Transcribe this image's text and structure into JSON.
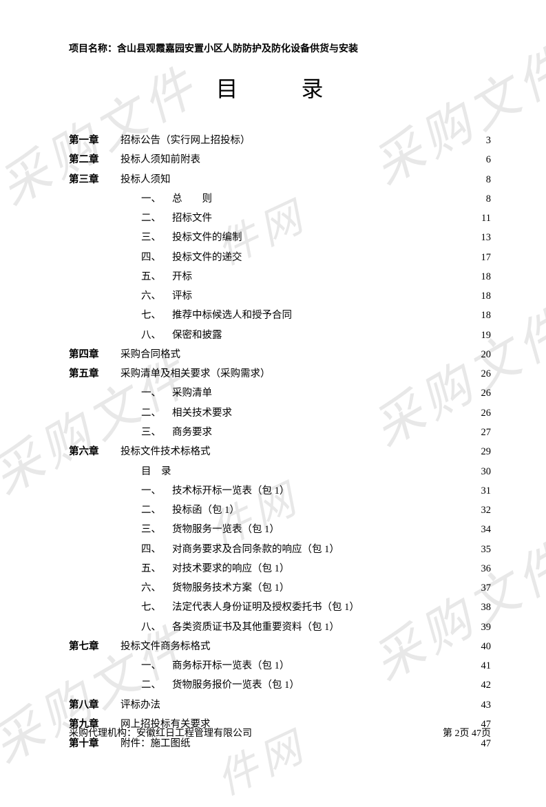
{
  "project_label": "项目名称：",
  "project_name": "含山县观霞嘉园安置小区人防防护及防化设备供货与安装",
  "title": "目　录",
  "watermark_text_a": "采购文件",
  "watermark_text_b": "件网",
  "toc": [
    {
      "type": "chapter",
      "chapter": "第一章",
      "text": "招标公告（实行网上招投标）",
      "page": "3"
    },
    {
      "type": "chapter",
      "chapter": "第二章",
      "text": "投标人须知前附表",
      "page": "6"
    },
    {
      "type": "chapter",
      "chapter": "第三章",
      "text": "投标人须知",
      "page": "8"
    },
    {
      "type": "sub",
      "num": "一、",
      "text": "总　　则",
      "page": "8"
    },
    {
      "type": "sub",
      "num": "二、",
      "text": "招标文件",
      "page": "11"
    },
    {
      "type": "sub",
      "num": "三、",
      "text": "投标文件的编制",
      "page": "13"
    },
    {
      "type": "sub",
      "num": "四、",
      "text": "投标文件的递交",
      "page": "17"
    },
    {
      "type": "sub",
      "num": "五、",
      "text": "开标",
      "page": "18"
    },
    {
      "type": "sub",
      "num": "六、",
      "text": "评标",
      "page": "18"
    },
    {
      "type": "sub",
      "num": "七、",
      "text": "推荐中标候选人和授予合同",
      "page": "18"
    },
    {
      "type": "sub",
      "num": "八、",
      "text": "保密和披露",
      "page": "19"
    },
    {
      "type": "chapter",
      "chapter": "第四章",
      "text": "采购合同格式",
      "page": "20"
    },
    {
      "type": "chapter",
      "chapter": "第五章",
      "text": "采购清单及相关要求（采购需求）",
      "page": "26"
    },
    {
      "type": "sub",
      "num": "一、",
      "text": "采购清单",
      "page": "26"
    },
    {
      "type": "sub",
      "num": "二、",
      "text": "相关技术要求",
      "page": "26"
    },
    {
      "type": "sub",
      "num": "三、",
      "text": "商务要求",
      "page": "27"
    },
    {
      "type": "chapter",
      "chapter": "第六章",
      "text": "投标文件技术标格式",
      "page": "29"
    },
    {
      "type": "sub-plain",
      "text": "目　录",
      "page": "30"
    },
    {
      "type": "sub",
      "num": "一、",
      "text": "技术标开标一览表（包 1）",
      "page": "31"
    },
    {
      "type": "sub",
      "num": "二、",
      "text": "投标函（包 1）",
      "page": "32"
    },
    {
      "type": "sub",
      "num": "三、",
      "text": "货物服务一览表（包 1）",
      "page": "34"
    },
    {
      "type": "sub",
      "num": "四、",
      "text": "对商务要求及合同条款的响应（包 1）",
      "page": "35"
    },
    {
      "type": "sub",
      "num": "五、",
      "text": "对技术要求的响应（包 1）",
      "page": "36"
    },
    {
      "type": "sub",
      "num": "六、",
      "text": "货物服务技术方案（包 1）",
      "page": "37"
    },
    {
      "type": "sub",
      "num": "七、",
      "text": "法定代表人身份证明及授权委托书（包 1）",
      "page": "38"
    },
    {
      "type": "sub",
      "num": "八、",
      "text": "各类资质证书及其他重要资料（包 1）",
      "page": "39"
    },
    {
      "type": "chapter",
      "chapter": "第七章",
      "text": "投标文件商务标格式",
      "page": "40"
    },
    {
      "type": "sub",
      "num": "一、",
      "text": "商务标开标一览表（包 1）",
      "page": "41"
    },
    {
      "type": "sub",
      "num": "二、",
      "text": "货物服务报价一览表（包 1）",
      "page": "42"
    },
    {
      "type": "chapter",
      "chapter": "第八章",
      "text": "评标办法",
      "page": "43"
    },
    {
      "type": "chapter",
      "chapter": "第九章",
      "text": "网上招投标有关要求",
      "page": "47"
    },
    {
      "type": "chapter",
      "chapter": "第十章",
      "text": "附件：施工图纸",
      "page": "47"
    }
  ],
  "footer": {
    "agency_label": "采购代理机构：",
    "agency_name": "安徽红日工程管理有限公司",
    "page_info": "第  2页 47页"
  }
}
